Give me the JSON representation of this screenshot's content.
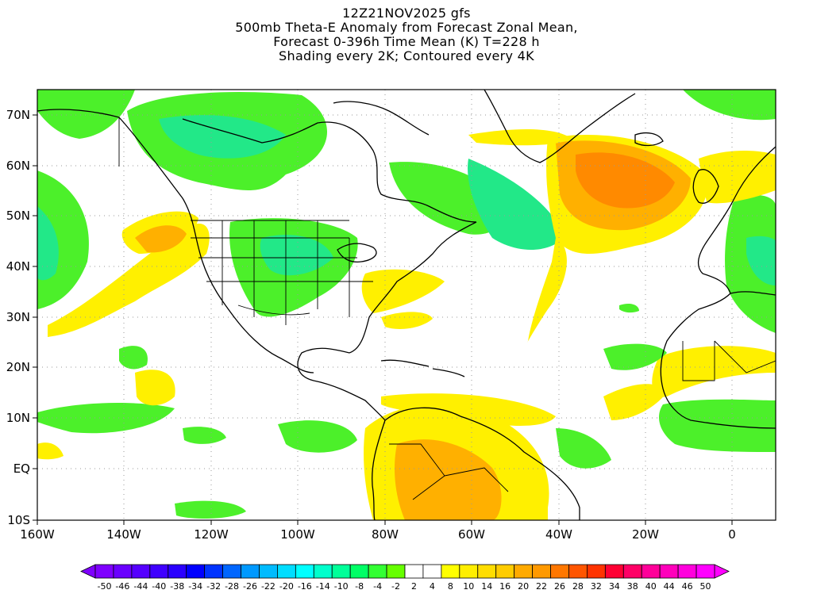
{
  "titles": {
    "line1": "12Z21NOV2025 gfs",
    "line2": "500mb Theta-E Anomaly from Forecast Zonal Mean,",
    "line3": "Forecast 0-396h Time Mean (K) T=228 h",
    "line4": "Shading every 2K; Contoured every 4K"
  },
  "axes": {
    "lat_labels": [
      "70N",
      "60N",
      "50N",
      "40N",
      "30N",
      "20N",
      "10N",
      "EQ",
      "10S"
    ],
    "lon_labels": [
      "160W",
      "140W",
      "120W",
      "100W",
      "80W",
      "60W",
      "40W",
      "20W",
      "0"
    ],
    "lon_range": [
      -160,
      10
    ],
    "lat_range": [
      -10,
      75
    ]
  },
  "colorbar": {
    "labels": [
      "-50",
      "-46",
      "-44",
      "-40",
      "-38",
      "-34",
      "-32",
      "-28",
      "-26",
      "-22",
      "-20",
      "-16",
      "-14",
      "-10",
      "-8",
      "-4",
      "-2",
      "2",
      "4",
      "8",
      "10",
      "14",
      "16",
      "20",
      "22",
      "26",
      "28",
      "32",
      "34",
      "38",
      "40",
      "44",
      "46",
      "50"
    ],
    "colors": [
      "#7f00ff",
      "#6a00ff",
      "#5500ff",
      "#3f00ff",
      "#2a00ff",
      "#0000ff",
      "#0033ff",
      "#0066ff",
      "#0099ff",
      "#00bbff",
      "#00ddff",
      "#00ffff",
      "#00ffcc",
      "#00ff99",
      "#00ff66",
      "#33ff33",
      "#66ff00",
      "#ffffff",
      "#ffffff",
      "#ffff00",
      "#ffee00",
      "#ffdd00",
      "#ffcc00",
      "#ffaa00",
      "#ff9900",
      "#ff7700",
      "#ff5500",
      "#ff3300",
      "#ff0033",
      "#ff0066",
      "#ff0099",
      "#ff00bb",
      "#ff00dd",
      "#ff00ff"
    ]
  },
  "colors": {
    "green": "#4cf02a",
    "cyan_green": "#22e888",
    "yellow": "#fff000",
    "orange": "#ffb000",
    "dark_orange": "#ff8a00"
  }
}
